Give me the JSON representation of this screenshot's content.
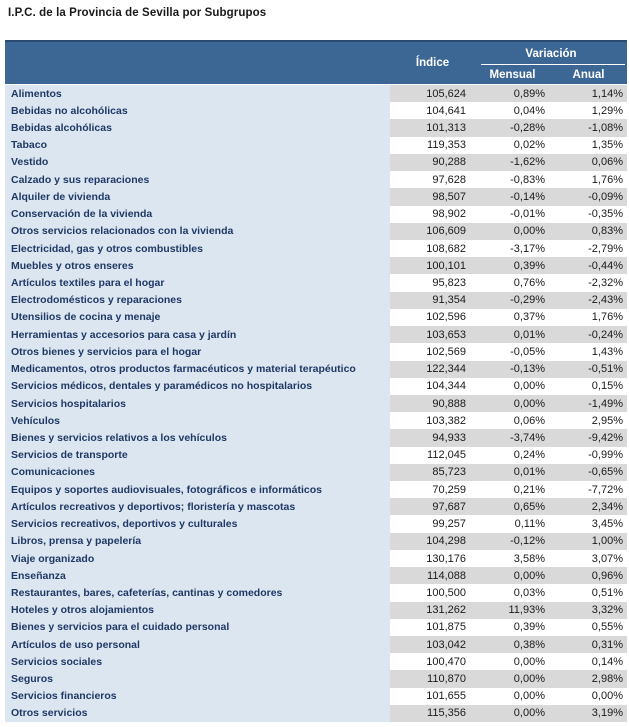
{
  "title": "I.P.C. de la Provincia de Sevilla por Subgrupos",
  "colors": {
    "header_bg": "#3C6795",
    "header_top_border": "#2B4A70",
    "header_text": "#FFFFFF",
    "label_bg": "#DCE6F1",
    "label_text": "#1F3864",
    "stripe_bg": "#D9D9D9",
    "white_bg": "#FFFFFF",
    "number_text": "#1A1A1A"
  },
  "table": {
    "headers": {
      "indice": "Índice",
      "variacion": "Variación",
      "mensual": "Mensual",
      "anual": "Anual"
    },
    "rows": [
      {
        "label": "Alimentos",
        "indice": "105,624",
        "mensual": "0,89%",
        "anual": "1,14%"
      },
      {
        "label": "Bebidas no alcohólicas",
        "indice": "104,641",
        "mensual": "0,04%",
        "anual": "1,29%"
      },
      {
        "label": "Bebidas alcohólicas",
        "indice": "101,313",
        "mensual": "-0,28%",
        "anual": "-1,08%"
      },
      {
        "label": "Tabaco",
        "indice": "119,353",
        "mensual": "0,02%",
        "anual": "1,35%"
      },
      {
        "label": "Vestido",
        "indice": "90,288",
        "mensual": "-1,62%",
        "anual": "0,06%"
      },
      {
        "label": "Calzado y sus reparaciones",
        "indice": "97,628",
        "mensual": "-0,83%",
        "anual": "1,76%"
      },
      {
        "label": "Alquiler de vivienda",
        "indice": "98,507",
        "mensual": "-0,14%",
        "anual": "-0,09%"
      },
      {
        "label": "Conservación de la vivienda",
        "indice": "98,902",
        "mensual": "-0,01%",
        "anual": "-0,35%"
      },
      {
        "label": "Otros servicios relacionados con la vivienda",
        "indice": "106,609",
        "mensual": "0,00%",
        "anual": "0,83%"
      },
      {
        "label": "Electricidad, gas y otros combustibles",
        "indice": "108,682",
        "mensual": "-3,17%",
        "anual": "-2,79%"
      },
      {
        "label": "Muebles y otros enseres",
        "indice": "100,101",
        "mensual": "0,39%",
        "anual": "-0,44%"
      },
      {
        "label": "Artículos textiles para el hogar",
        "indice": "95,823",
        "mensual": "0,76%",
        "anual": "-2,32%"
      },
      {
        "label": "Electrodomésticos y reparaciones",
        "indice": "91,354",
        "mensual": "-0,29%",
        "anual": "-2,43%"
      },
      {
        "label": "Utensilios de cocina y menaje",
        "indice": "102,596",
        "mensual": "0,37%",
        "anual": "1,76%"
      },
      {
        "label": "Herramientas y accesorios para casa y jardín",
        "indice": "103,653",
        "mensual": "0,01%",
        "anual": "-0,24%"
      },
      {
        "label": "Otros bienes y servicios para el hogar",
        "indice": "102,569",
        "mensual": "-0,05%",
        "anual": "1,43%"
      },
      {
        "label": "Medicamentos, otros productos farmacéuticos y material terapéutico",
        "indice": "122,344",
        "mensual": "-0,13%",
        "anual": "-0,51%"
      },
      {
        "label": "Servicios médicos, dentales y paramédicos no hospitalarios",
        "indice": "104,344",
        "mensual": "0,00%",
        "anual": "0,15%"
      },
      {
        "label": "Servicios hospitalarios",
        "indice": "90,888",
        "mensual": "0,00%",
        "anual": "-1,49%"
      },
      {
        "label": "Vehículos",
        "indice": "103,382",
        "mensual": "0,06%",
        "anual": "2,95%"
      },
      {
        "label": "Bienes y servicios relativos a los vehículos",
        "indice": "94,933",
        "mensual": "-3,74%",
        "anual": "-9,42%"
      },
      {
        "label": "Servicios de transporte",
        "indice": "112,045",
        "mensual": "0,24%",
        "anual": "-0,99%"
      },
      {
        "label": "Comunicaciones",
        "indice": "85,723",
        "mensual": "0,01%",
        "anual": "-0,65%"
      },
      {
        "label": "Equipos y soportes audiovisuales, fotográficos e informáticos",
        "indice": "70,259",
        "mensual": "0,21%",
        "anual": "-7,72%"
      },
      {
        "label": "Artículos recreativos y deportivos; floristería y mascotas",
        "indice": "97,687",
        "mensual": "0,65%",
        "anual": "2,34%"
      },
      {
        "label": "Servicios recreativos, deportivos y culturales",
        "indice": "99,257",
        "mensual": "0,11%",
        "anual": "3,45%"
      },
      {
        "label": "Libros, prensa y papelería",
        "indice": "104,298",
        "mensual": "-0,12%",
        "anual": "1,00%"
      },
      {
        "label": "Viaje organizado",
        "indice": "130,176",
        "mensual": "3,58%",
        "anual": "3,07%"
      },
      {
        "label": "Enseñanza",
        "indice": "114,088",
        "mensual": "0,00%",
        "anual": "0,96%"
      },
      {
        "label": "Restaurantes, bares, cafeterías, cantinas y comedores",
        "indice": "100,500",
        "mensual": "0,03%",
        "anual": "0,51%"
      },
      {
        "label": "Hoteles y otros alojamientos",
        "indice": "131,262",
        "mensual": "11,93%",
        "anual": "3,32%"
      },
      {
        "label": "Bienes y servicios para el cuidado personal",
        "indice": "101,875",
        "mensual": "0,39%",
        "anual": "0,55%"
      },
      {
        "label": "Artículos de uso personal",
        "indice": "103,042",
        "mensual": "0,38%",
        "anual": "0,31%"
      },
      {
        "label": "Servicios sociales",
        "indice": "100,470",
        "mensual": "0,00%",
        "anual": "0,14%"
      },
      {
        "label": "Seguros",
        "indice": "110,870",
        "mensual": "0,00%",
        "anual": "2,98%"
      },
      {
        "label": "Servicios financieros",
        "indice": "101,655",
        "mensual": "0,00%",
        "anual": "0,00%"
      },
      {
        "label": "Otros servicios",
        "indice": "115,356",
        "mensual": "0,00%",
        "anual": "3,19%"
      }
    ]
  }
}
